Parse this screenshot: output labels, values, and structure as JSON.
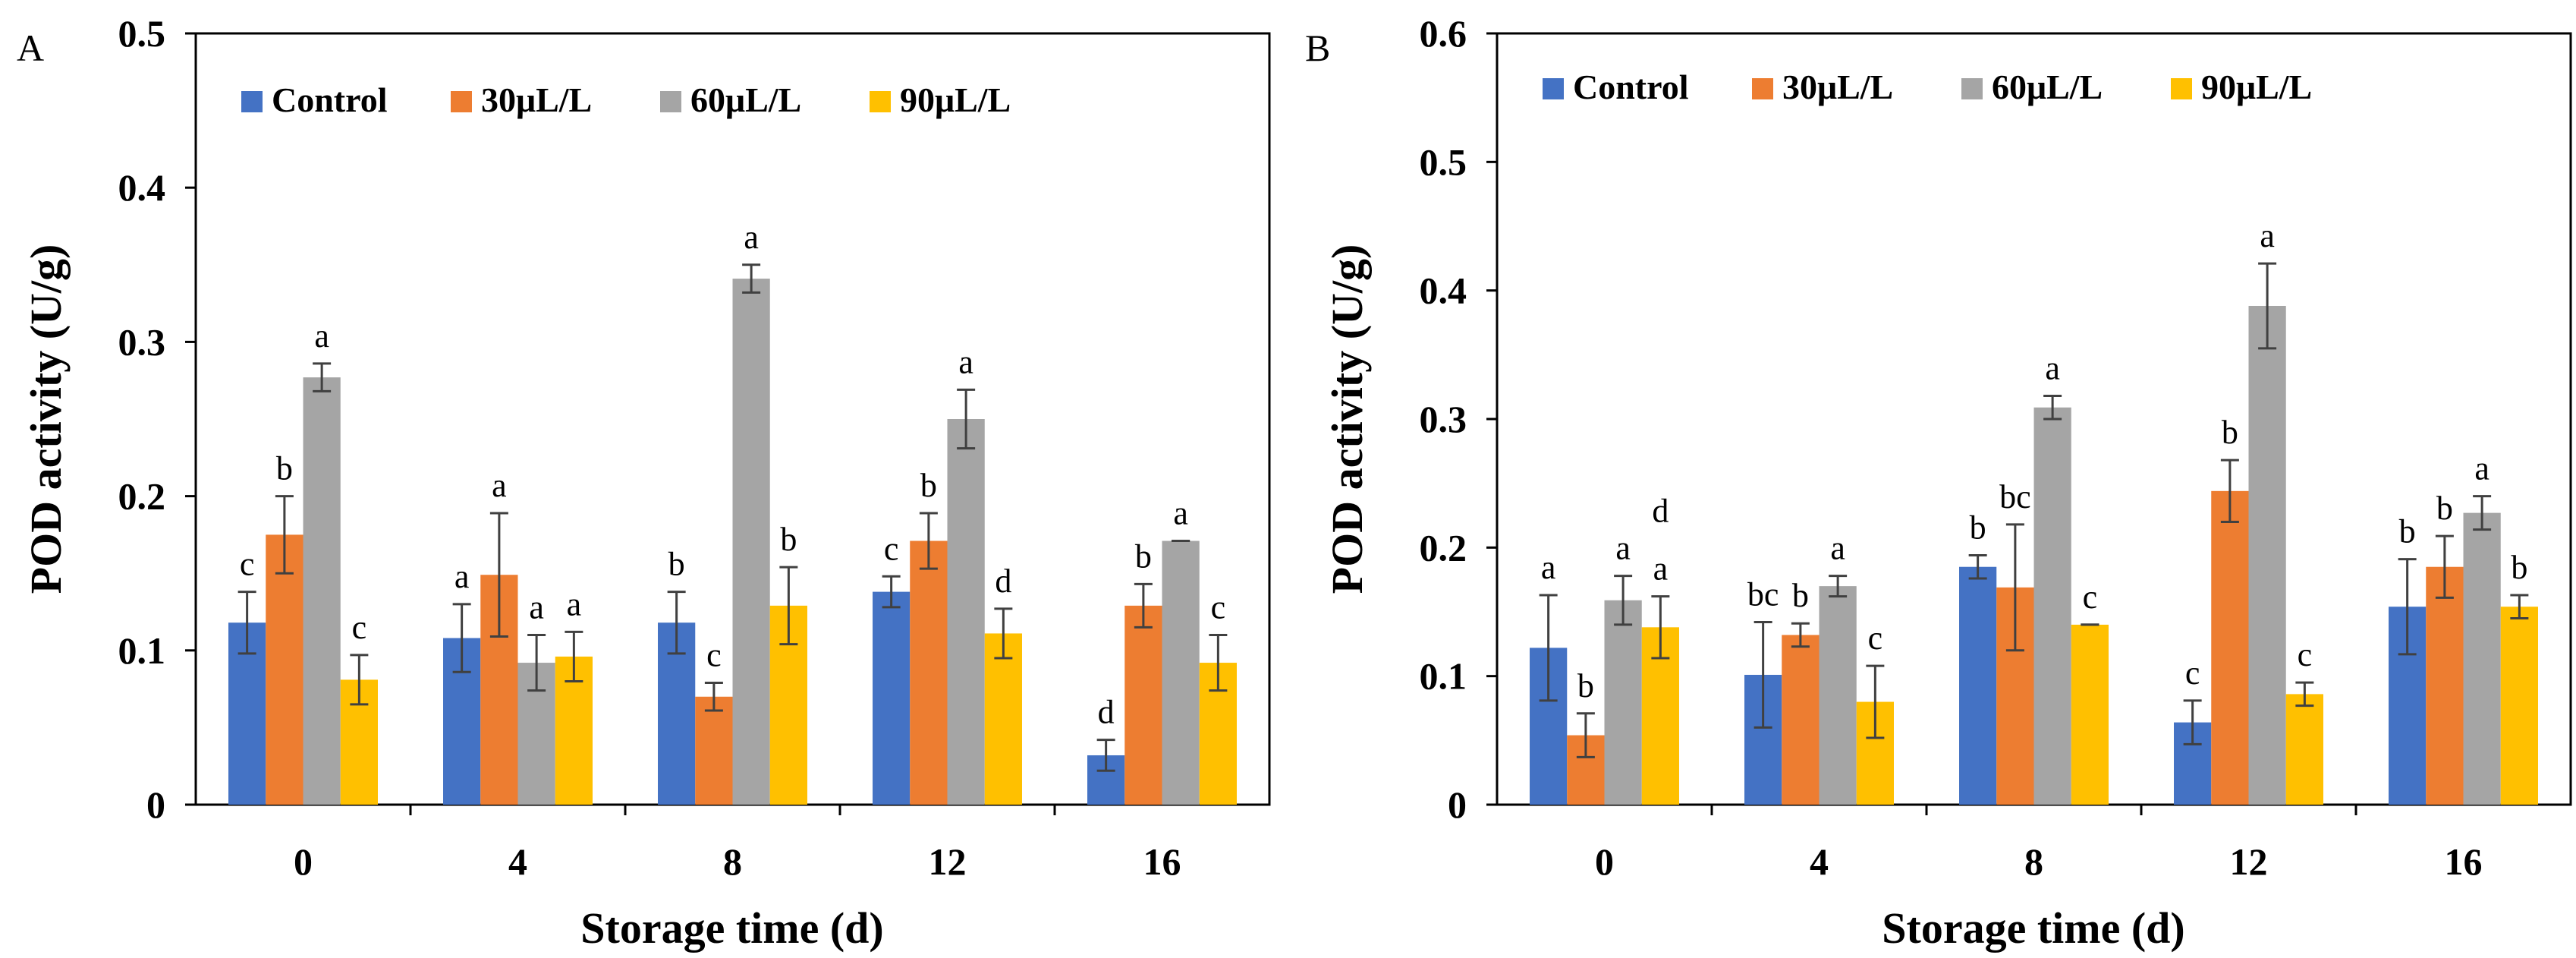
{
  "chart_data": [
    {
      "type": "bar",
      "panel_label": "A",
      "title": "",
      "xlabel": "Storage time (d)",
      "ylabel": "POD activity (U/g)",
      "ylim": [
        0,
        0.5
      ],
      "yticks": [
        "0",
        "0.1",
        "0.2",
        "0.3",
        "0.4",
        "0.5"
      ],
      "categories": [
        "0",
        "4",
        "8",
        "12",
        "16"
      ],
      "legend_position": "top-left",
      "grid": false,
      "series": [
        {
          "name": "Control",
          "color": "#4472C4",
          "values": [
            0.118,
            0.108,
            0.118,
            0.138,
            0.032
          ],
          "errors": [
            0.02,
            0.022,
            0.02,
            0.01,
            0.01
          ],
          "letters": [
            "c",
            "a",
            "b",
            "c",
            "d"
          ]
        },
        {
          "name": "30μL/L",
          "color": "#ED7D31",
          "values": [
            0.175,
            0.149,
            0.07,
            0.171,
            0.129
          ],
          "errors": [
            0.025,
            0.04,
            0.009,
            0.018,
            0.014
          ],
          "letters": [
            "b",
            "a",
            "c",
            "b",
            "b"
          ]
        },
        {
          "name": "60μL/L",
          "color": "#A5A5A5",
          "values": [
            0.277,
            0.092,
            0.341,
            0.25,
            0.171
          ],
          "errors": [
            0.009,
            0.018,
            0.009,
            0.019,
            0.0
          ],
          "letters": [
            "a",
            "a",
            "a",
            "a",
            "a"
          ]
        },
        {
          "name": "90μL/L",
          "color": "#FFC000",
          "values": [
            0.081,
            0.096,
            0.129,
            0.111,
            0.092
          ],
          "errors": [
            0.016,
            0.016,
            0.025,
            0.016,
            0.018
          ],
          "letters": [
            "c",
            "a",
            "b",
            "d",
            "c"
          ]
        }
      ]
    },
    {
      "type": "bar",
      "panel_label": "B",
      "title": "",
      "xlabel": "Storage time (d)",
      "ylabel": "POD activity (U/g)",
      "ylim": [
        0,
        0.6
      ],
      "yticks": [
        "0",
        "0.1",
        "0.2",
        "0.3",
        "0.4",
        "0.5",
        "0.6"
      ],
      "categories": [
        "0",
        "4",
        "8",
        "12",
        "16"
      ],
      "legend_position": "top-left",
      "grid": false,
      "series": [
        {
          "name": "Control",
          "color": "#4472C4",
          "values": [
            0.122,
            0.101,
            0.185,
            0.064,
            0.154
          ],
          "errors": [
            0.041,
            0.041,
            0.009,
            0.017,
            0.037
          ],
          "letters": [
            "a",
            "bc",
            "b",
            "c",
            "b"
          ]
        },
        {
          "name": "30μL/L",
          "color": "#ED7D31",
          "values": [
            0.054,
            0.132,
            0.169,
            0.244,
            0.185
          ],
          "errors": [
            0.017,
            0.009,
            0.049,
            0.024,
            0.024
          ],
          "letters": [
            "b",
            "b",
            "bc",
            "b",
            "b"
          ]
        },
        {
          "name": "60μL/L",
          "color": "#A5A5A5",
          "values": [
            0.159,
            0.17,
            0.309,
            0.388,
            0.227
          ],
          "errors": [
            0.019,
            0.008,
            0.009,
            0.033,
            0.013
          ],
          "letters": [
            "a",
            "a",
            "a",
            "a",
            "a"
          ]
        },
        {
          "name": "90μL/L",
          "color": "#FFC000",
          "values": [
            0.138,
            0.08,
            0.14,
            0.086,
            0.154
          ],
          "errors": [
            0.024,
            0.028,
            0.0,
            0.009,
            0.009
          ],
          "letters": [
            "a",
            "c",
            "c",
            "c",
            "b"
          ]
        }
      ],
      "extra_annotations": [
        "d"
      ]
    }
  ]
}
